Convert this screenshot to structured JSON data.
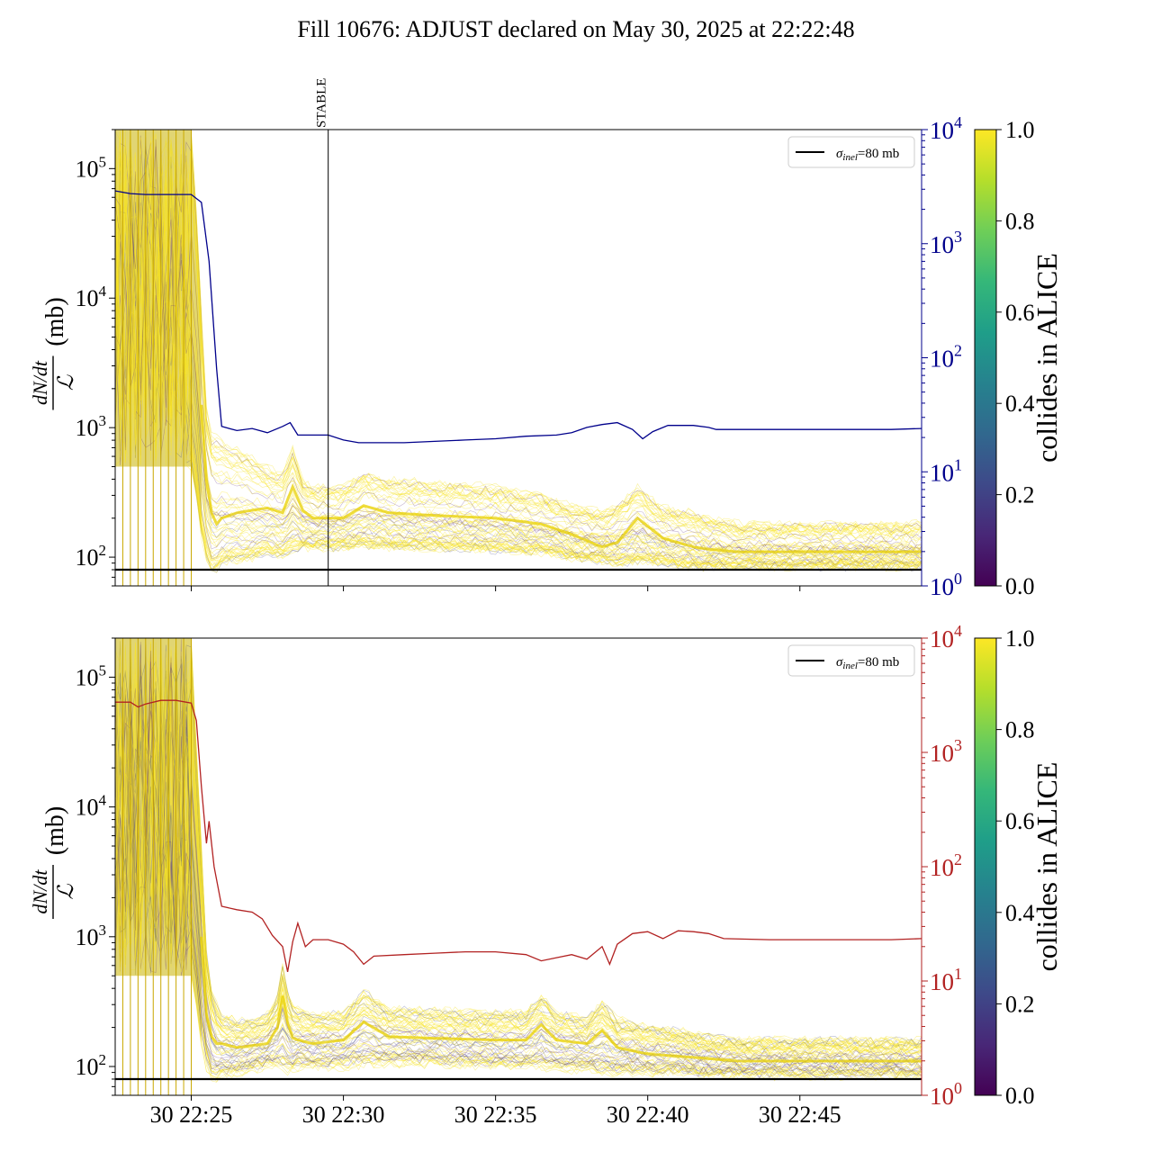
{
  "title": "Fill 10676: ADJUST declared on May 30, 2025 at 22:22:48",
  "colors": {
    "lumi_top": "#00008b",
    "lumi_bottom": "#b22222",
    "sigma_line": "#000000",
    "viridis": [
      "#440154",
      "#482777",
      "#3e4989",
      "#31688e",
      "#26828e",
      "#1f9e89",
      "#35b779",
      "#6ece58",
      "#b5de2b",
      "#fde725"
    ]
  },
  "chart_data": [
    {
      "type": "line",
      "panel": "top",
      "ylabel_left": "dN/dt / ℒ (mb)",
      "yscale_left": "log",
      "ylim_left": [
        60,
        200000
      ],
      "yticks_left": [
        {
          "base": "10",
          "exp": "2"
        },
        {
          "base": "10",
          "exp": "3"
        },
        {
          "base": "10",
          "exp": "4"
        },
        {
          "base": "10",
          "exp": "5"
        }
      ],
      "yscale_right": "log",
      "ylim_right": [
        1,
        10000
      ],
      "yticks_right": [
        {
          "base": "10",
          "exp": "0"
        },
        {
          "base": "10",
          "exp": "1"
        },
        {
          "base": "10",
          "exp": "2"
        },
        {
          "base": "10",
          "exp": "3"
        },
        {
          "base": "10",
          "exp": "4"
        }
      ],
      "right_axis_color": "#00008b",
      "xlim": [
        "22:22:30",
        "22:49:00"
      ],
      "vline": {
        "time": "22:29:30",
        "label": "STABLE"
      },
      "hline": {
        "value": 80
      },
      "legend": {
        "label": "σinel=80 mb",
        "sym": "σ",
        "sub": "inel",
        "rest": "=80 mb",
        "placement": "top-right"
      },
      "lumi_series": [
        [
          "22:22:30",
          2900
        ],
        [
          "22:23:00",
          2750
        ],
        [
          "22:23:30",
          2700
        ],
        [
          "22:24:00",
          2700
        ],
        [
          "22:24:30",
          2700
        ],
        [
          "22:25:00",
          2700
        ],
        [
          "22:25:20",
          2300
        ],
        [
          "22:25:35",
          700
        ],
        [
          "22:25:50",
          80
        ],
        [
          "22:26:00",
          25
        ],
        [
          "22:26:30",
          23
        ],
        [
          "22:27:00",
          24
        ],
        [
          "22:27:30",
          22
        ],
        [
          "22:28:00",
          25
        ],
        [
          "22:28:15",
          27
        ],
        [
          "22:28:30",
          21
        ],
        [
          "22:29:00",
          21
        ],
        [
          "22:29:30",
          21
        ],
        [
          "22:30:00",
          19
        ],
        [
          "22:30:30",
          18
        ],
        [
          "22:31:00",
          18
        ],
        [
          "22:32:00",
          18
        ],
        [
          "22:33:00",
          18.5
        ],
        [
          "22:34:00",
          19
        ],
        [
          "22:35:00",
          19.5
        ],
        [
          "22:36:00",
          20.5
        ],
        [
          "22:37:00",
          21
        ],
        [
          "22:37:30",
          22
        ],
        [
          "22:38:00",
          24.5
        ],
        [
          "22:38:30",
          26
        ],
        [
          "22:39:00",
          27
        ],
        [
          "22:39:30",
          23.5
        ],
        [
          "22:39:50",
          19.5
        ],
        [
          "22:40:10",
          22.5
        ],
        [
          "22:40:40",
          25.5
        ],
        [
          "22:41:30",
          25.5
        ],
        [
          "22:42:00",
          24.5
        ],
        [
          "22:42:15",
          23.5
        ],
        [
          "22:44:00",
          23.5
        ],
        [
          "22:46:00",
          23.5
        ],
        [
          "22:48:00",
          23.5
        ],
        [
          "22:49:00",
          24
        ]
      ],
      "envelope_time": [
        "22:22:30",
        "22:25:00",
        "22:25:10",
        "22:25:20",
        "22:25:30",
        "22:25:40",
        "22:25:50",
        "22:26:00",
        "22:26:30",
        "22:27:00",
        "22:27:30",
        "22:28:00",
        "22:28:20",
        "22:28:40",
        "22:29:00",
        "22:30:00",
        "22:30:40",
        "22:31:30",
        "22:33:00",
        "22:35:00",
        "22:36:30",
        "22:37:30",
        "22:38:30",
        "22:39:00",
        "22:39:40",
        "22:40:30",
        "22:41:30",
        "22:42:00",
        "22:43:00",
        "22:45:00",
        "22:47:00",
        "22:49:00"
      ],
      "envelope_low": [
        500,
        500,
        300,
        150,
        100,
        80,
        80,
        90,
        95,
        100,
        110,
        105,
        115,
        120,
        120,
        120,
        125,
        120,
        118,
        115,
        110,
        100,
        95,
        90,
        95,
        90,
        85,
        85,
        85,
        85,
        85,
        85
      ],
      "envelope_high": [
        200000,
        200000,
        50000,
        8000,
        1500,
        900,
        850,
        800,
        700,
        600,
        500,
        450,
        700,
        400,
        350,
        350,
        450,
        400,
        380,
        350,
        300,
        250,
        220,
        250,
        350,
        240,
        220,
        200,
        180,
        180,
        180,
        180
      ],
      "envelope_mid": [
        20000,
        20000,
        8000,
        1500,
        400,
        220,
        180,
        200,
        220,
        230,
        240,
        220,
        350,
        230,
        200,
        200,
        250,
        220,
        210,
        200,
        180,
        150,
        120,
        130,
        200,
        140,
        120,
        115,
        110,
        110,
        110,
        110
      ],
      "spike_times": [
        "22:22:45",
        "22:23:00",
        "22:23:15",
        "22:23:30",
        "22:23:45",
        "22:24:00",
        "22:24:15",
        "22:24:30",
        "22:24:45",
        "22:25:00"
      ],
      "xticks": [
        "30 22:25",
        "30 22:30",
        "30 22:35",
        "30 22:40",
        "30 22:45"
      ],
      "xtick_labels_visible": false,
      "colorbar": {
        "label": "collides in ALICE",
        "range": [
          0,
          1
        ],
        "ticks": [
          "0.0",
          "0.2",
          "0.4",
          "0.6",
          "0.8",
          "1.0"
        ]
      }
    },
    {
      "type": "line",
      "panel": "bottom",
      "ylabel_left": "dN/dt / ℒ (mb)",
      "yscale_left": "log",
      "ylim_left": [
        60,
        200000
      ],
      "yticks_left": [
        {
          "base": "10",
          "exp": "2"
        },
        {
          "base": "10",
          "exp": "3"
        },
        {
          "base": "10",
          "exp": "4"
        },
        {
          "base": "10",
          "exp": "5"
        }
      ],
      "yscale_right": "log",
      "ylim_right": [
        1,
        10000
      ],
      "yticks_right": [
        {
          "base": "10",
          "exp": "0"
        },
        {
          "base": "10",
          "exp": "1"
        },
        {
          "base": "10",
          "exp": "2"
        },
        {
          "base": "10",
          "exp": "3"
        },
        {
          "base": "10",
          "exp": "4"
        }
      ],
      "right_axis_color": "#b22222",
      "xlim": [
        "22:22:30",
        "22:49:00"
      ],
      "hline": {
        "value": 80
      },
      "legend": {
        "label": "σinel=80 mb",
        "sym": "σ",
        "sub": "inel",
        "rest": "=80 mb",
        "placement": "top-right"
      },
      "lumi_series": [
        [
          "22:22:30",
          2750
        ],
        [
          "22:23:00",
          2750
        ],
        [
          "22:23:15",
          2500
        ],
        [
          "22:23:30",
          2650
        ],
        [
          "22:24:00",
          2850
        ],
        [
          "22:24:30",
          2850
        ],
        [
          "22:25:00",
          2700
        ],
        [
          "22:25:10",
          1900
        ],
        [
          "22:25:20",
          500
        ],
        [
          "22:25:30",
          160
        ],
        [
          "22:25:35",
          250
        ],
        [
          "22:25:45",
          100
        ],
        [
          "22:26:00",
          45
        ],
        [
          "22:26:30",
          42
        ],
        [
          "22:27:00",
          40
        ],
        [
          "22:27:20",
          35
        ],
        [
          "22:27:40",
          25
        ],
        [
          "22:28:00",
          20
        ],
        [
          "22:28:10",
          12
        ],
        [
          "22:28:20",
          22
        ],
        [
          "22:28:30",
          32
        ],
        [
          "22:28:45",
          20
        ],
        [
          "22:29:00",
          23
        ],
        [
          "22:29:30",
          23
        ],
        [
          "22:30:00",
          21
        ],
        [
          "22:30:20",
          18
        ],
        [
          "22:30:40",
          14
        ],
        [
          "22:31:00",
          16.5
        ],
        [
          "22:32:00",
          17
        ],
        [
          "22:33:00",
          17.5
        ],
        [
          "22:34:00",
          18
        ],
        [
          "22:35:00",
          18
        ],
        [
          "22:36:00",
          17
        ],
        [
          "22:36:30",
          15
        ],
        [
          "22:37:00",
          16
        ],
        [
          "22:37:30",
          17
        ],
        [
          "22:38:00",
          15.5
        ],
        [
          "22:38:30",
          20
        ],
        [
          "22:38:45",
          14
        ],
        [
          "22:39:00",
          21
        ],
        [
          "22:39:30",
          26
        ],
        [
          "22:40:00",
          27
        ],
        [
          "22:40:30",
          23.5
        ],
        [
          "22:41:00",
          27.5
        ],
        [
          "22:41:30",
          27
        ],
        [
          "22:42:00",
          26
        ],
        [
          "22:42:30",
          23.5
        ],
        [
          "22:44:00",
          23
        ],
        [
          "22:46:00",
          23
        ],
        [
          "22:48:00",
          23
        ],
        [
          "22:49:00",
          23.5
        ]
      ],
      "envelope_time": [
        "22:22:30",
        "22:25:00",
        "22:25:10",
        "22:25:20",
        "22:25:30",
        "22:25:40",
        "22:25:50",
        "22:26:00",
        "22:26:30",
        "22:27:00",
        "22:27:30",
        "22:27:50",
        "22:28:00",
        "22:28:15",
        "22:28:30",
        "22:29:00",
        "22:30:00",
        "22:30:40",
        "22:31:30",
        "22:33:00",
        "22:35:00",
        "22:36:00",
        "22:36:30",
        "22:37:00",
        "22:37:30",
        "22:38:00",
        "22:38:30",
        "22:39:00",
        "22:40:00",
        "22:41:00",
        "22:42:00",
        "22:43:00",
        "22:45:00",
        "22:47:00",
        "22:49:00"
      ],
      "envelope_low": [
        500,
        500,
        300,
        150,
        100,
        80,
        80,
        85,
        90,
        95,
        100,
        100,
        95,
        90,
        100,
        100,
        100,
        105,
        105,
        105,
        100,
        100,
        100,
        95,
        95,
        95,
        90,
        90,
        90,
        90,
        85,
        85,
        85,
        85,
        85
      ],
      "envelope_high": [
        200000,
        200000,
        30000,
        5000,
        800,
        400,
        300,
        250,
        220,
        230,
        250,
        350,
        600,
        300,
        280,
        250,
        260,
        380,
        280,
        270,
        260,
        260,
        350,
        260,
        250,
        230,
        320,
        230,
        200,
        190,
        170,
        160,
        160,
        160,
        160
      ],
      "envelope_mid": [
        20000,
        20000,
        6000,
        1000,
        250,
        170,
        150,
        150,
        140,
        145,
        150,
        200,
        350,
        170,
        160,
        150,
        160,
        220,
        170,
        165,
        160,
        160,
        210,
        160,
        155,
        150,
        190,
        140,
        125,
        120,
        115,
        110,
        110,
        110,
        110
      ],
      "spike_times": [
        "22:22:45",
        "22:23:00",
        "22:23:15",
        "22:23:30",
        "22:23:45",
        "22:24:00",
        "22:24:15",
        "22:24:30",
        "22:24:45",
        "22:25:00"
      ],
      "xticks": [
        "30 22:25",
        "30 22:30",
        "30 22:35",
        "30 22:40",
        "30 22:45"
      ],
      "xtick_labels_visible": true,
      "colorbar": {
        "label": "collides in ALICE",
        "range": [
          0,
          1
        ],
        "ticks": [
          "0.0",
          "0.2",
          "0.4",
          "0.6",
          "0.8",
          "1.0"
        ]
      }
    }
  ]
}
